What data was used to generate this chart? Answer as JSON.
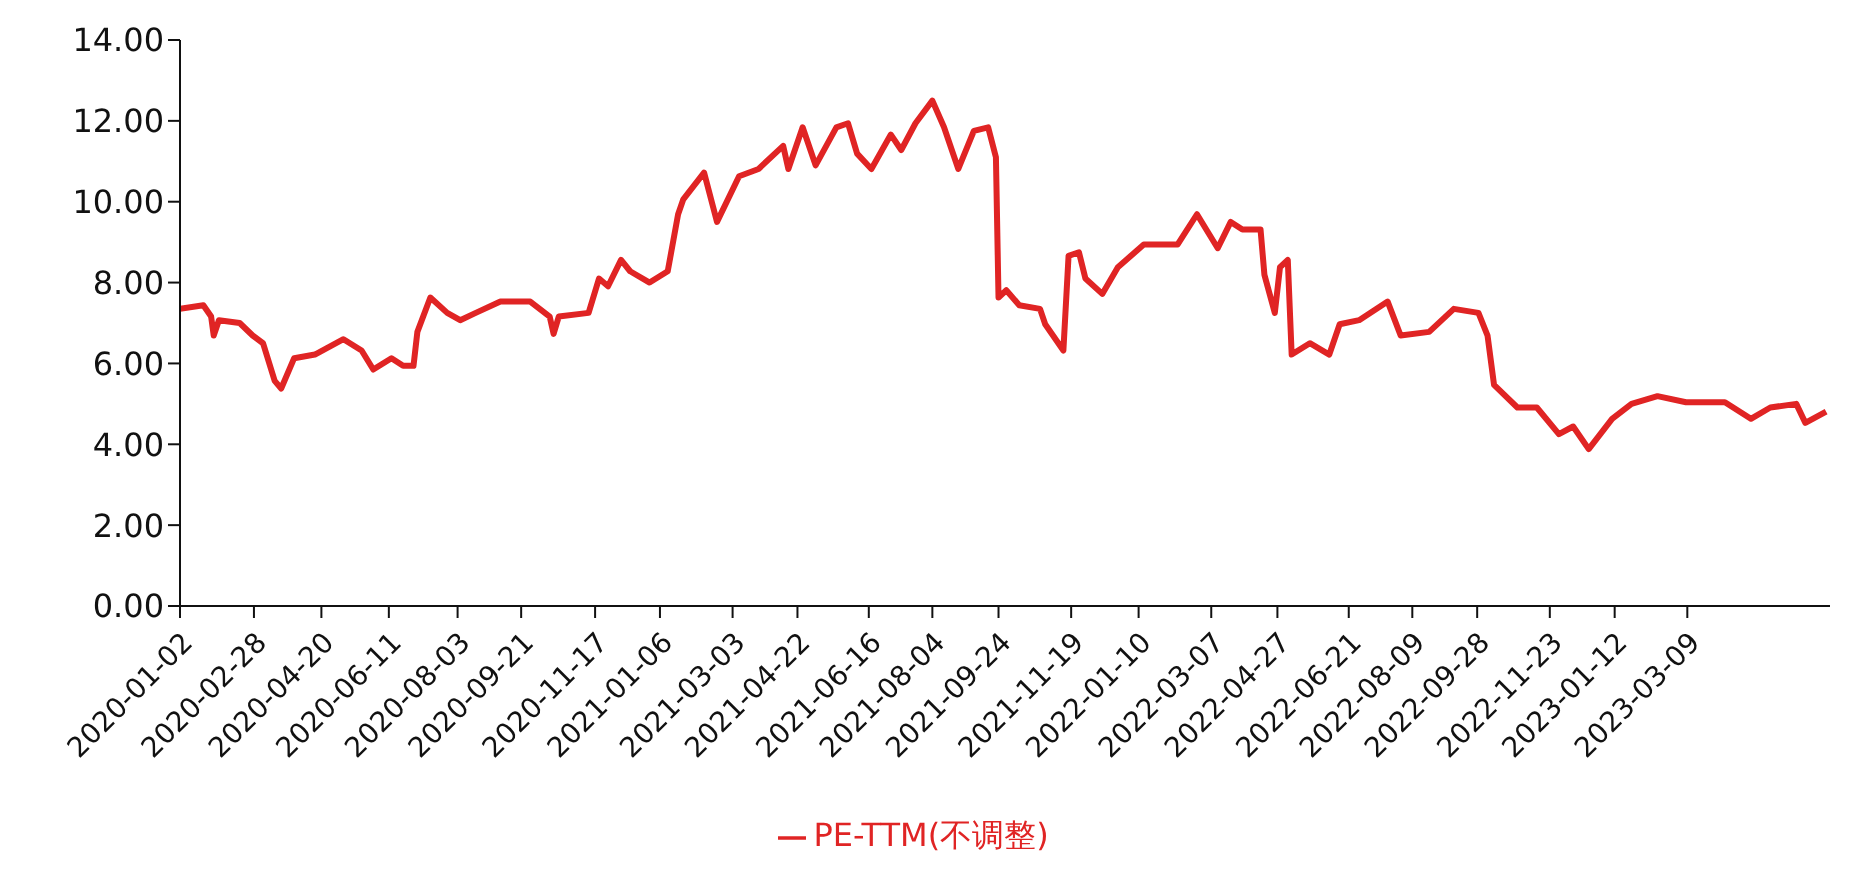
{
  "chart_data": {
    "type": "line",
    "x": [
      "2020-01-02",
      "2020-01-20",
      "2020-01-26",
      "2020-01-28",
      "2020-02-01",
      "2020-02-17",
      "2020-02-27",
      "2020-03-06",
      "2020-03-15",
      "2020-03-20",
      "2020-03-30",
      "2020-04-15",
      "2020-05-07",
      "2020-05-21",
      "2020-05-30",
      "2020-06-13",
      "2020-06-22",
      "2020-06-30",
      "2020-07-03",
      "2020-07-13",
      "2020-07-26",
      "2020-08-05",
      "2020-08-17",
      "2020-09-05",
      "2020-09-28",
      "2020-10-13",
      "2020-10-16",
      "2020-10-20",
      "2020-11-12",
      "2020-11-20",
      "2020-11-27",
      "2020-12-07",
      "2020-12-14",
      "2020-12-29",
      "2021-01-12",
      "2021-01-20",
      "2021-01-24",
      "2021-02-09",
      "2021-02-19",
      "2021-03-08",
      "2021-03-23",
      "2021-04-11",
      "2021-04-15",
      "2021-04-26",
      "2021-05-06",
      "2021-05-22",
      "2021-05-31",
      "2021-06-07",
      "2021-06-18",
      "2021-07-03",
      "2021-07-11",
      "2021-07-22",
      "2021-08-04",
      "2021-08-13",
      "2021-08-24",
      "2021-09-05",
      "2021-09-16",
      "2021-09-22",
      "2021-09-24",
      "2021-09-30",
      "2021-10-10",
      "2021-10-26",
      "2021-10-30",
      "2021-11-13",
      "2021-11-17",
      "2021-11-25",
      "2021-11-30",
      "2021-12-13",
      "2021-12-25",
      "2022-01-14",
      "2022-02-09",
      "2022-02-24",
      "2022-03-12",
      "2022-03-22",
      "2022-03-31",
      "2022-04-14",
      "2022-04-17",
      "2022-04-25",
      "2022-04-29",
      "2022-05-05",
      "2022-05-08",
      "2022-05-22",
      "2022-06-06",
      "2022-06-14",
      "2022-06-29",
      "2022-07-21",
      "2022-07-31",
      "2022-08-22",
      "2022-09-10",
      "2022-09-29",
      "2022-10-06",
      "2022-10-11",
      "2022-10-29",
      "2022-11-13",
      "2022-11-30",
      "2022-12-11",
      "2022-12-23",
      "2023-01-10",
      "2023-01-25",
      "2023-02-14",
      "2023-03-08",
      "2023-04-07",
      "2023-04-27",
      "2023-05-12",
      "2023-06-01",
      "2023-06-08",
      "2023-06-24"
    ],
    "series": [
      {
        "name": "PE-TTM(不调整)",
        "color": "#e02424",
        "values": [
          7.35,
          7.44,
          7.16,
          6.69,
          7.07,
          7.0,
          6.69,
          6.5,
          5.57,
          5.38,
          6.13,
          6.22,
          6.6,
          6.32,
          5.85,
          6.13,
          5.94,
          5.94,
          6.78,
          7.63,
          7.25,
          7.07,
          7.25,
          7.53,
          7.53,
          7.16,
          6.73,
          7.16,
          7.25,
          8.1,
          7.91,
          8.56,
          8.28,
          8.0,
          8.28,
          9.69,
          10.06,
          10.72,
          9.5,
          10.63,
          10.81,
          11.38,
          10.81,
          11.84,
          10.9,
          11.84,
          11.94,
          11.19,
          10.81,
          11.66,
          11.28,
          11.94,
          12.5,
          11.84,
          10.81,
          11.75,
          11.84,
          11.1,
          7.63,
          7.81,
          7.44,
          7.35,
          6.97,
          6.32,
          8.66,
          8.75,
          8.1,
          7.72,
          8.38,
          8.94,
          8.94,
          9.69,
          8.85,
          9.5,
          9.31,
          9.31,
          8.19,
          7.25,
          8.38,
          8.56,
          6.22,
          6.5,
          6.22,
          6.97,
          7.07,
          7.53,
          6.69,
          6.78,
          7.35,
          7.25,
          6.69,
          5.47,
          4.91,
          4.91,
          4.25,
          4.44,
          3.88,
          4.63,
          5.0,
          5.19,
          5.04,
          5.04,
          4.63,
          4.91,
          5.0,
          4.53,
          4.81
        ]
      }
    ],
    "xlim": [
      "2020-01-02",
      "2023-06-27"
    ],
    "xticks": [
      "2020-01-02",
      "2020-02-28",
      "2020-04-20",
      "2020-06-11",
      "2020-08-03",
      "2020-09-21",
      "2020-11-17",
      "2021-01-06",
      "2021-03-03",
      "2021-04-22",
      "2021-06-16",
      "2021-08-04",
      "2021-09-24",
      "2021-11-19",
      "2022-01-10",
      "2022-03-07",
      "2022-04-27",
      "2022-06-21",
      "2022-08-09",
      "2022-09-28",
      "2022-11-23",
      "2023-01-12",
      "2023-03-09"
    ],
    "ylim": [
      0,
      14
    ],
    "yticks": [
      {
        "value": 0,
        "label": "0.00"
      },
      {
        "value": 2,
        "label": "2.00"
      },
      {
        "value": 4,
        "label": "4.00"
      },
      {
        "value": 6,
        "label": "6.00"
      },
      {
        "value": 8,
        "label": "8.00"
      },
      {
        "value": 10,
        "label": "10.00"
      },
      {
        "value": 12,
        "label": "12.00"
      },
      {
        "value": 14,
        "label": "14.00"
      }
    ],
    "legend": "bottom",
    "marker": "none",
    "line_style": "solid"
  }
}
